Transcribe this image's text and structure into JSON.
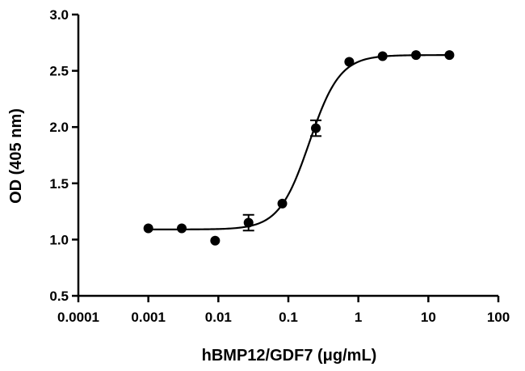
{
  "chart_data": {
    "type": "scatter",
    "xlabel": "hBMP12/GDF7 (μg/mL)",
    "ylabel": "OD (405 nm)",
    "xscale": "log",
    "xlim": [
      0.0001,
      100
    ],
    "ylim": [
      0.5,
      3.0
    ],
    "xticks": [
      "0.0001",
      "0.001",
      "0.01",
      "0.1",
      "1",
      "10",
      "100"
    ],
    "yticks": [
      "0.5",
      "1.0",
      "1.5",
      "2.0",
      "2.5",
      "3.0"
    ],
    "grid": false,
    "legend": "none",
    "colors": {
      "points": "#000000",
      "curve": "#000000",
      "axes": "#000000"
    },
    "points": [
      {
        "x": 0.001,
        "y": 1.1,
        "err": 0.0
      },
      {
        "x": 0.003,
        "y": 1.1,
        "err": 0.0
      },
      {
        "x": 0.009,
        "y": 0.99,
        "err": 0.0
      },
      {
        "x": 0.027,
        "y": 1.15,
        "err": 0.07
      },
      {
        "x": 0.082,
        "y": 1.32,
        "err": 0.0
      },
      {
        "x": 0.247,
        "y": 1.99,
        "err": 0.07
      },
      {
        "x": 0.741,
        "y": 2.58,
        "err": 0.0
      },
      {
        "x": 2.22,
        "y": 2.63,
        "err": 0.0
      },
      {
        "x": 6.67,
        "y": 2.64,
        "err": 0.0
      },
      {
        "x": 20.0,
        "y": 2.64,
        "err": 0.0
      }
    ],
    "fit_curve": {
      "model": "4PL",
      "bottom": 1.09,
      "top": 2.64,
      "ec50": 0.2,
      "hill": 2.0,
      "x_range": [
        0.001,
        20
      ]
    }
  }
}
